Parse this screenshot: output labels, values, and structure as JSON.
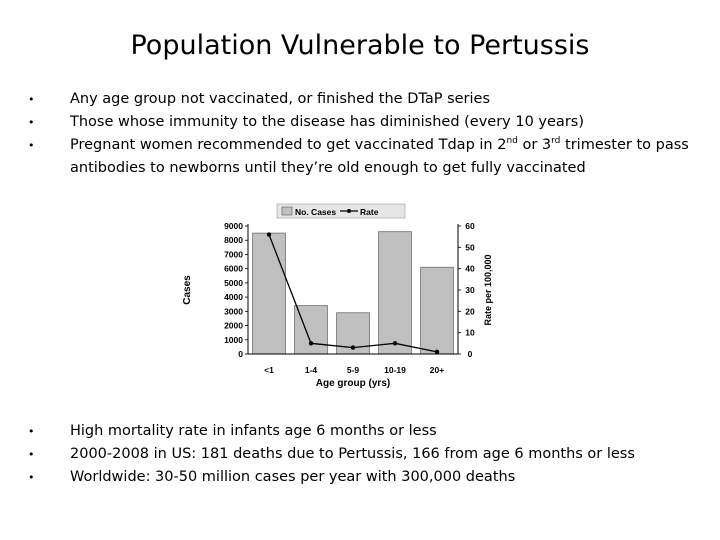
{
  "title": "Population Vulnerable to Pertussis",
  "top_bullets": [
    "Any age group not vaccinated, or finished the DTaP series",
    "Those whose immunity to the disease has diminished (every 10 years)"
  ],
  "pregnant_bullet": {
    "part1": "Pregnant women recommended to get vaccinated Tdap in 2",
    "sup1": "nd",
    "part2": " or 3",
    "sup2": "rd",
    "part3": " trimester to pass antibodies to newborns until they’re old enough to get fully vaccinated"
  },
  "bottom_bullets": [
    "High mortality rate in infants age 6 months or less",
    "2000-2008 in US:  181 deaths due to Pertussis, 166 from age 6 months or less",
    "Worldwide: 30-50 million cases per year with 300,000 deaths"
  ],
  "chart_data": {
    "type": "bar",
    "categories": [
      "<1",
      "1-4",
      "5-9",
      "10-19",
      "20+"
    ],
    "series": [
      {
        "name": "No. Cases",
        "type": "bar",
        "axis": "left",
        "values": [
          8500,
          3400,
          2900,
          8600,
          6100
        ],
        "color": "#c0c0c0"
      },
      {
        "name": "Rate",
        "type": "line",
        "axis": "right",
        "values": [
          56,
          5,
          3,
          5,
          1
        ],
        "color": "#000000"
      }
    ],
    "xlabel": "Age group (yrs)",
    "ylabel": "Cases",
    "y2label": "Rate per 100,000",
    "ylim": [
      0,
      9000
    ],
    "y2lim": [
      0,
      60
    ],
    "yticks": [
      0,
      1000,
      2000,
      3000,
      4000,
      5000,
      6000,
      7000,
      8000,
      9000
    ],
    "y2ticks": [
      0,
      10,
      20,
      30,
      40,
      50,
      60
    ],
    "legend_position": "top",
    "grid": false
  }
}
